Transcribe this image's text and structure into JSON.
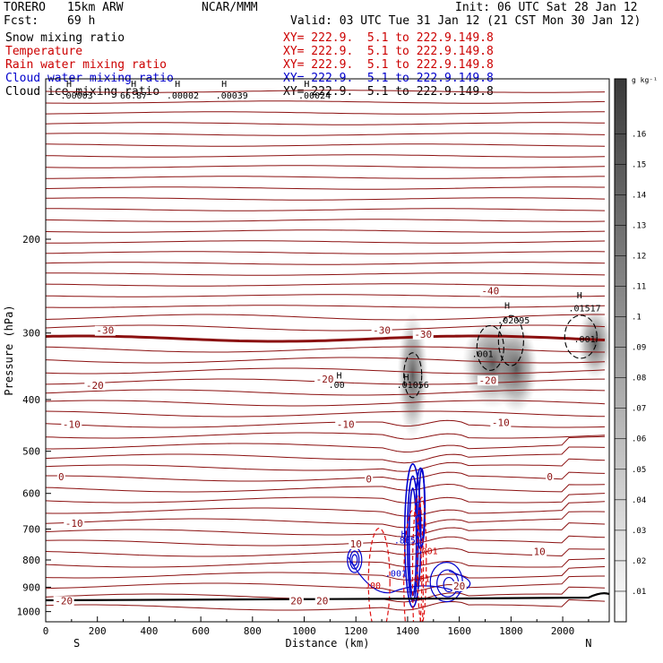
{
  "header": {
    "model": "TORERO",
    "resolution": "15km ARW",
    "org": "NCAR/MMM",
    "init": "Init: 06 UTC Sat 28 Jan 12",
    "fcst_label": "Fcst:",
    "fcst_value": "69 h",
    "valid": "Valid: 03 UTC Tue 31 Jan 12 (21 CST Mon 30 Jan 12)"
  },
  "fields": [
    {
      "name": "Snow mixing ratio",
      "xy": "XY= 222.9.  5.1 to 222.9.149.8",
      "color": "#000000"
    },
    {
      "name": "Temperature",
      "xy": "XY= 222.9.  5.1 to 222.9.149.8",
      "color": "#cc0000"
    },
    {
      "name": "Rain water mixing ratio",
      "xy": "XY= 222.9.  5.1 to 222.9.149.8",
      "color": "#cc0000"
    },
    {
      "name": "Cloud water mixing ratio",
      "xy": "XY= 222.9.  5.1 to 222.9.149.8",
      "color": "#0000cc"
    },
    {
      "name": "Cloud ice mixing ratio",
      "xy": "XY= 222.9.  5.1 to 222.9.149.8",
      "color": "#000000"
    }
  ],
  "chart_data": {
    "type": "cross-section",
    "xlabel": "Distance (km)",
    "ylabel": "Pressure (hPa)",
    "x_ticks": [
      0,
      200,
      400,
      600,
      800,
      1000,
      1200,
      1400,
      1600,
      1800,
      2000
    ],
    "y_ticks": [
      200,
      300,
      400,
      500,
      600,
      700,
      800,
      900,
      1000
    ],
    "xlim": [
      0,
      2180
    ],
    "ylim": [
      1045,
      100
    ],
    "y_scale": "log",
    "endpoints": {
      "left": "S",
      "right": "N"
    },
    "colorbar": {
      "unit": "g kg⁻¹",
      "ticks": [
        ".01",
        ".02",
        ".03",
        ".04",
        ".05",
        ".06",
        ".07",
        ".08",
        ".09",
        ".1",
        ".11",
        ".12",
        ".13",
        ".14",
        ".15",
        ".16"
      ]
    },
    "temperature_contours": [
      {
        "label": "-30",
        "x": 230,
        "p": 300
      },
      {
        "label": "-20",
        "x": 190,
        "p": 380
      },
      {
        "label": "-10",
        "x": 100,
        "p": 450
      },
      {
        "label": "0",
        "x": 60,
        "p": 565
      },
      {
        "label": "-10",
        "x": 110,
        "p": 690
      },
      {
        "label": "-20",
        "x": 70,
        "p": 965
      },
      {
        "label": "-20",
        "x": 1080,
        "p": 370
      },
      {
        "label": "-30",
        "x": 1300,
        "p": 300
      },
      {
        "label": "-10",
        "x": 1160,
        "p": 450
      },
      {
        "label": "-30",
        "x": 1460,
        "p": 305
      },
      {
        "label": "-10",
        "x": 1760,
        "p": 447
      },
      {
        "label": "-40",
        "x": 1720,
        "p": 253
      },
      {
        "label": "-20",
        "x": 1710,
        "p": 372
      },
      {
        "label": "0",
        "x": 1250,
        "p": 570
      },
      {
        "label": "0",
        "x": 1950,
        "p": 565
      },
      {
        "label": "10",
        "x": 1200,
        "p": 755
      },
      {
        "label": "10",
        "x": 1910,
        "p": 780
      },
      {
        "label": "20",
        "x": 1600,
        "p": 905
      },
      {
        "label": "20",
        "x": 970,
        "p": 965
      },
      {
        "label": "20",
        "x": 1070,
        "p": 965
      }
    ],
    "field_labels": [
      {
        "label": "H",
        "x": 1135,
        "p": 365,
        "color": "#000000"
      },
      {
        "label": ".00",
        "x": 1125,
        "p": 380,
        "color": "#000000"
      },
      {
        "label": "H",
        "x": 1395,
        "p": 368,
        "color": "#000000"
      },
      {
        "label": ".01056",
        "x": 1420,
        "p": 380,
        "color": "#000000"
      },
      {
        "label": "H",
        "x": 1785,
        "p": 270,
        "color": "#000000"
      },
      {
        "label": ".02095",
        "x": 1810,
        "p": 288,
        "color": "#000000"
      },
      {
        "label": ".001",
        "x": 1690,
        "p": 333,
        "color": "#000000"
      },
      {
        "label": "H",
        "x": 2065,
        "p": 258,
        "color": "#000000"
      },
      {
        "label": ".01517",
        "x": 2085,
        "p": 273,
        "color": "#000000"
      },
      {
        "label": ".001",
        "x": 2085,
        "p": 312,
        "color": "#000000"
      },
      {
        "label": "H",
        "x": 1385,
        "p": 725,
        "color": "#0000cc"
      },
      {
        "label": ".8651",
        "x": 1400,
        "p": 745,
        "color": "#0000cc"
      },
      {
        "label": ".001",
        "x": 1475,
        "p": 780,
        "color": "#cc0000"
      },
      {
        "label": ".001",
        "x": 1355,
        "p": 860,
        "color": "#0000cc"
      },
      {
        "label": ".001",
        "x": 1445,
        "p": 880,
        "color": "#cc0000"
      },
      {
        "label": ".00",
        "x": 1265,
        "p": 905,
        "color": "#cc0000"
      }
    ],
    "top_labels": [
      {
        "label": "H",
        "x": 90,
        "row": 0
      },
      {
        "label": ".00003",
        "x": 120,
        "row": 1
      },
      {
        "label": "H",
        "x": 340,
        "row": 0
      },
      {
        "label": "66.87",
        "x": 340,
        "row": 1
      },
      {
        "label": "H",
        "x": 510,
        "row": 0
      },
      {
        "label": ".00002",
        "x": 530,
        "row": 1
      },
      {
        "label": "H",
        "x": 690,
        "row": 0
      },
      {
        "label": ".00039",
        "x": 720,
        "row": 1
      },
      {
        "label": "H",
        "x": 1010,
        "row": 0
      },
      {
        "label": ".00024",
        "x": 1040,
        "row": 1
      }
    ]
  }
}
